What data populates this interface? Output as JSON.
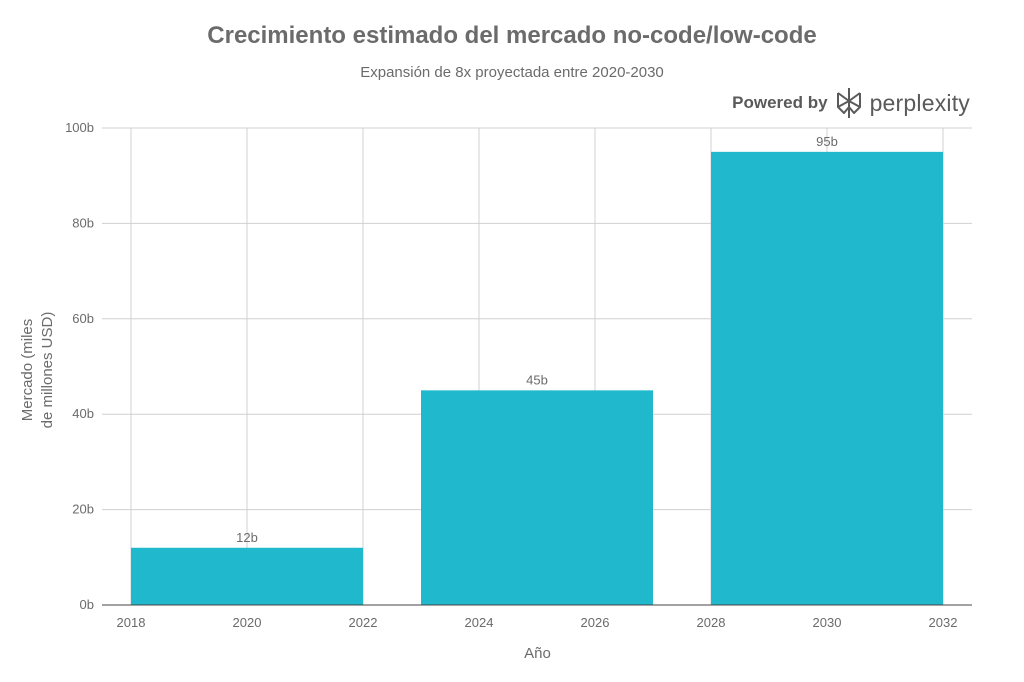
{
  "chart_data": {
    "type": "bar",
    "title": "Crecimiento estimado del mercado no-code/low-code",
    "subtitle": "Expansión de 8x proyectada entre 2020-2030",
    "xlabel": "Año",
    "ylabel_lines": [
      "Mercado (miles",
      "de millones USD)"
    ],
    "categories": [
      2020,
      2025,
      2030
    ],
    "values": [
      12,
      45,
      95
    ],
    "data_labels": [
      "12b",
      "45b",
      "95b"
    ],
    "bar_width_years": 4,
    "xlim": [
      2017.5,
      2032.5
    ],
    "ylim": [
      0,
      100
    ],
    "x_ticks": [
      2018,
      2020,
      2022,
      2024,
      2026,
      2028,
      2030,
      2032
    ],
    "y_ticks": [
      0,
      20,
      40,
      60,
      80,
      100
    ],
    "y_tick_labels": [
      "0b",
      "20b",
      "40b",
      "60b",
      "80b",
      "100b"
    ],
    "grid": true,
    "bar_color": "#1fb8cd",
    "legend": "none"
  },
  "branding": {
    "powered_by": "Powered by",
    "name": "perplexity",
    "logo_icon": "perplexity-logo-icon",
    "logo_color": "#5a5a5a"
  }
}
